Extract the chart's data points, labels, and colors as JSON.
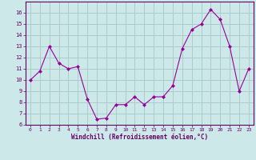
{
  "x": [
    0,
    1,
    2,
    3,
    4,
    5,
    6,
    7,
    8,
    9,
    10,
    11,
    12,
    13,
    14,
    15,
    16,
    17,
    18,
    19,
    20,
    21,
    22,
    23
  ],
  "y": [
    10,
    10.8,
    13,
    11.5,
    11,
    11.2,
    8.3,
    6.5,
    6.6,
    7.8,
    7.8,
    8.5,
    7.8,
    8.5,
    8.5,
    9.5,
    12.8,
    14.5,
    15.0,
    16.3,
    15.4,
    13.0,
    9.0,
    11.0
  ],
  "line_color": "#990099",
  "marker_color": "#990099",
  "bg_color": "#cce8e8",
  "grid_color": "#aacccc",
  "xlabel": "Windchill (Refroidissement éolien,°C)",
  "xlabel_color": "#660066",
  "tick_color": "#660066",
  "ylim": [
    6,
    17
  ],
  "xlim": [
    -0.5,
    23.5
  ],
  "yticks": [
    6,
    7,
    8,
    9,
    10,
    11,
    12,
    13,
    14,
    15,
    16
  ],
  "xticks": [
    0,
    1,
    2,
    3,
    4,
    5,
    6,
    7,
    8,
    9,
    10,
    11,
    12,
    13,
    14,
    15,
    16,
    17,
    18,
    19,
    20,
    21,
    22,
    23
  ]
}
